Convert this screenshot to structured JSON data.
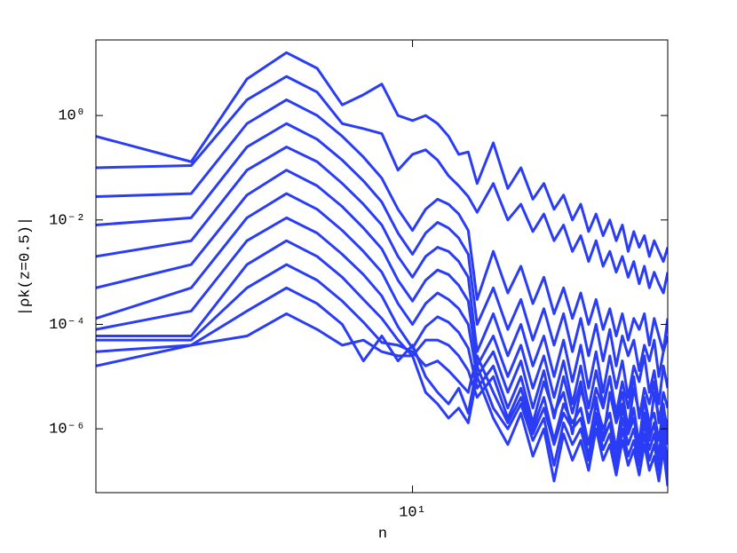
{
  "chart_data": {
    "type": "line",
    "xlabel": "n",
    "ylabel": "|ρk(z=0.5)|",
    "xscale": "log",
    "yscale": "log",
    "color": "#2a3df5",
    "xlim": [
      1,
      64
    ],
    "ylim": [
      6e-08,
      28
    ],
    "xticks": [
      {
        "value": 10,
        "label": "10¹"
      }
    ],
    "yticks": [
      {
        "value": 1e-06,
        "label": "10⁻⁶"
      },
      {
        "value": 0.0001,
        "label": "10⁻⁴"
      },
      {
        "value": 0.01,
        "label": "10⁻²"
      },
      {
        "value": 1,
        "label": "10⁰"
      }
    ],
    "x": [
      1,
      2,
      3,
      4,
      5,
      6,
      7,
      8,
      9,
      10,
      11,
      12,
      13,
      14,
      15,
      16,
      18,
      20,
      22,
      24,
      26,
      28,
      30,
      32,
      34,
      36,
      38,
      40,
      42,
      44,
      46,
      48,
      50,
      52,
      54,
      56,
      58,
      60,
      62,
      64
    ],
    "series": [
      {
        "values": [
          0.4,
          0.13,
          5,
          16,
          8,
          1.6,
          2.5,
          4,
          1,
          0.8,
          1,
          0.7,
          0.4,
          0.18,
          0.2,
          0.05,
          0.3,
          0.04,
          0.1,
          0.025,
          0.05,
          0.016,
          0.03,
          0.01,
          0.02,
          0.006,
          0.013,
          0.005,
          0.01,
          0.004,
          0.008,
          0.0025,
          0.006,
          0.003,
          0.005,
          0.002,
          0.004,
          0.0025,
          0.0016,
          0.003
        ]
      },
      {
        "values": [
          0.1,
          0.11,
          2,
          5.6,
          2.8,
          0.7,
          0.56,
          0.45,
          0.09,
          0.18,
          0.22,
          0.14,
          0.07,
          0.045,
          0.028,
          0.014,
          0.05,
          0.01,
          0.02,
          0.006,
          0.013,
          0.004,
          0.008,
          0.0025,
          0.005,
          0.0016,
          0.004,
          0.0013,
          0.0025,
          0.001,
          0.002,
          0.0008,
          0.0016,
          0.0006,
          0.0013,
          0.0005,
          0.001,
          0.0006,
          0.0004,
          0.001
        ]
      },
      {
        "values": [
          0.028,
          0.032,
          0.7,
          2,
          1,
          0.4,
          0.16,
          0.063,
          0.016,
          0.0063,
          0.016,
          0.025,
          0.02,
          0.013,
          0.0063,
          0.0003,
          0.0025,
          0.0004,
          0.0013,
          0.00025,
          0.0008,
          0.00016,
          0.0005,
          0.00013,
          0.0004,
          0.0001,
          0.0003,
          8e-05,
          0.0002,
          6e-05,
          0.00016,
          5e-05,
          0.00013,
          8e-05,
          0.00016,
          4e-05,
          0.00013,
          6e-05,
          3e-05,
          0.00013
        ]
      },
      {
        "values": [
          0.008,
          0.011,
          0.25,
          0.7,
          0.35,
          0.14,
          0.056,
          0.022,
          0.0056,
          0.0022,
          0.0056,
          0.009,
          0.007,
          0.0045,
          0.0022,
          0.0001,
          0.0005,
          8e-05,
          0.0003,
          5e-05,
          0.0002,
          4e-05,
          0.00016,
          3e-05,
          0.00013,
          2.5e-05,
          0.0001,
          2e-05,
          8e-05,
          1.6e-05,
          6e-05,
          2.5e-05,
          5e-05,
          1.3e-05,
          4e-05,
          2e-05,
          5e-05,
          1e-05,
          3e-05,
          6e-05
        ]
      },
      {
        "values": [
          0.002,
          0.004,
          0.09,
          0.25,
          0.13,
          0.05,
          0.02,
          0.008,
          0.002,
          0.0008,
          0.002,
          0.003,
          0.0025,
          0.0016,
          0.0008,
          3e-05,
          0.00016,
          2.5e-05,
          0.0001,
          1.6e-05,
          6e-05,
          1e-05,
          5e-05,
          8e-06,
          4e-05,
          6e-06,
          3e-05,
          5e-06,
          2.5e-05,
          6e-06,
          2e-05,
          4e-06,
          1.6e-05,
          8e-06,
          2.5e-05,
          5e-06,
          1.3e-05,
          3e-06,
          1.6e-05,
          6e-06
        ]
      },
      {
        "values": [
          0.0005,
          0.0014,
          0.03,
          0.09,
          0.045,
          0.018,
          0.007,
          0.0028,
          0.0007,
          0.00028,
          0.0007,
          0.0011,
          0.0009,
          0.00056,
          0.00028,
          1.6e-05,
          6e-05,
          1e-05,
          4e-05,
          6e-06,
          2.5e-05,
          4e-06,
          2e-05,
          3e-06,
          1.6e-05,
          2.5e-06,
          1.3e-05,
          3e-06,
          1e-05,
          2e-06,
          8e-06,
          2.5e-06,
          1e-05,
          1.6e-06,
          6e-06,
          3e-06,
          8e-06,
          1.3e-06,
          5e-06,
          2.5e-06
        ]
      },
      {
        "values": [
          0.00013,
          0.0005,
          0.011,
          0.032,
          0.016,
          0.0063,
          0.0025,
          0.001,
          0.00025,
          0.0001,
          0.00025,
          0.0004,
          0.0003,
          0.0002,
          0.0001,
          1e-05,
          3e-05,
          5e-06,
          2e-05,
          2.5e-06,
          1.3e-05,
          1.6e-06,
          1e-05,
          2e-06,
          8e-06,
          1.3e-06,
          6e-06,
          2.5e-06,
          1e-05,
          1.6e-06,
          5e-06,
          1e-06,
          6e-06,
          2e-06,
          4e-06,
          8e-07,
          5e-06,
          1.6e-06,
          3e-06,
          6e-07
        ]
      },
      {
        "values": [
          8e-05,
          0.00018,
          0.004,
          0.011,
          0.0056,
          0.0022,
          0.0009,
          0.00035,
          9e-05,
          3.5e-05,
          9e-05,
          0.00014,
          0.00011,
          7e-05,
          3.5e-05,
          6e-06,
          1.6e-05,
          2.5e-06,
          1e-05,
          1.3e-06,
          8e-06,
          2e-06,
          5e-06,
          8e-07,
          6e-06,
          1.6e-06,
          4e-06,
          6e-07,
          5e-06,
          1.3e-06,
          3e-06,
          8e-07,
          2.5e-06,
          5e-07,
          4e-06,
          1.3e-06,
          2e-06,
          6e-07,
          2.5e-06,
          1e-06
        ]
      },
      {
        "values": [
          6e-05,
          6e-05,
          0.0014,
          0.004,
          0.002,
          0.0008,
          0.0003,
          0.00013,
          5e-05,
          2.5e-05,
          5e-05,
          5e-05,
          4e-05,
          2.5e-05,
          1.3e-05,
          4e-06,
          1e-05,
          1.6e-06,
          6e-06,
          1e-06,
          4e-06,
          6e-07,
          3e-06,
          1.3e-06,
          2.5e-06,
          5e-07,
          3e-06,
          1e-06,
          2e-06,
          4e-07,
          2.5e-06,
          8e-07,
          1.6e-06,
          4e-07,
          2e-06,
          6e-07,
          1.3e-06,
          3e-07,
          1.6e-06,
          5e-07
        ]
      },
      {
        "values": [
          5e-05,
          5e-05,
          0.0005,
          0.0014,
          0.0007,
          0.00028,
          0.00011,
          4.5e-05,
          4e-05,
          3e-05,
          1.6e-05,
          2e-05,
          1.3e-05,
          8e-06,
          5e-06,
          2.5e-05,
          5e-06,
          1.3e-06,
          4e-06,
          8e-07,
          2.5e-06,
          5e-07,
          2e-06,
          1e-06,
          1.6e-06,
          3e-07,
          2e-06,
          6e-07,
          1.3e-06,
          2.5e-07,
          1.6e-06,
          5e-07,
          1e-06,
          3e-07,
          1.3e-06,
          4e-07,
          8e-07,
          2.5e-07,
          1e-06,
          2e-07
        ]
      },
      {
        "values": [
          3e-05,
          4e-05,
          0.00018,
          0.0005,
          0.00025,
          0.0001,
          2e-05,
          6e-05,
          2e-05,
          4e-05,
          1e-05,
          5e-06,
          3e-06,
          6e-06,
          2e-06,
          1.6e-05,
          2.5e-06,
          1e-06,
          3e-06,
          6e-07,
          1.6e-06,
          2e-07,
          1.3e-06,
          5e-07,
          1e-06,
          2.5e-07,
          1.6e-06,
          4e-07,
          8e-07,
          1.6e-07,
          1e-06,
          3e-07,
          6e-07,
          2e-07,
          8e-07,
          2.5e-07,
          5e-07,
          1.6e-07,
          6e-07,
          1.3e-07
        ]
      },
      {
        "values": [
          1.6e-05,
          4e-05,
          6e-05,
          0.00016,
          8e-05,
          4e-05,
          5e-05,
          3e-05,
          2.5e-05,
          2.5e-05,
          5e-06,
          3e-06,
          1.6e-06,
          2.5e-06,
          1.3e-06,
          1e-05,
          1.6e-06,
          5e-07,
          2e-06,
          3e-07,
          1e-06,
          1e-07,
          8e-07,
          2.5e-07,
          6e-07,
          1.6e-07,
          1e-06,
          2.5e-07,
          5e-07,
          1.3e-07,
          6e-07,
          2e-07,
          4e-07,
          1.3e-07,
          5e-07,
          1.6e-07,
          3e-07,
          1e-07,
          4e-07,
          8e-08
        ]
      }
    ]
  }
}
